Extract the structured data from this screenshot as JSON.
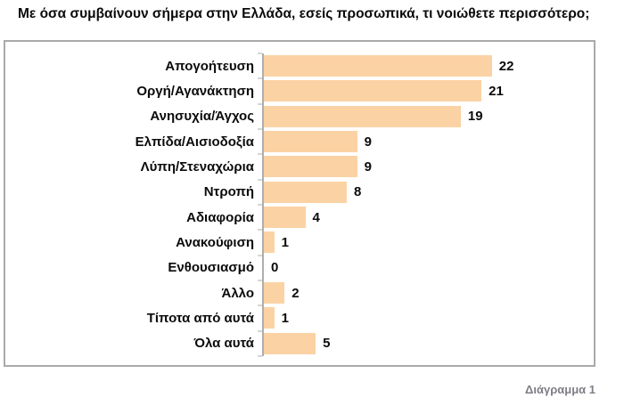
{
  "title": "Με όσα συμβαίνουν σήμερα στην Ελλάδα, εσείς προσωπικά, τι νοιώθετε περισσότερο;",
  "caption": "Διάγραμμα 1",
  "colors": {
    "bar": "#fbd2a4",
    "axis": "#aeaeae",
    "frame_border": "#a9a9a9",
    "text": "#0b0b0c",
    "caption_text": "#7e7e86",
    "background": "#ffffff"
  },
  "chart_data": {
    "type": "bar",
    "orientation": "horizontal",
    "title": "Με όσα συμβαίνουν σήμερα στην Ελλάδα, εσείς προσωπικά, τι νοιώθετε περισσότερο;",
    "categories": [
      "Απογοήτευση",
      "Οργή/Αγανάκτηση",
      "Ανησυχία/Άγχος",
      "Ελπίδα/Αισιοδοξία",
      "Λύπη/Στεναχώρια",
      "Ντροπή",
      "Αδιαφορία",
      "Ανακούφιση",
      "Ενθουσιασμό",
      "Άλλο",
      "Τίποτα από αυτά",
      "Όλα αυτά"
    ],
    "values": [
      22,
      21,
      19,
      9,
      9,
      8,
      4,
      1,
      0,
      2,
      1,
      5
    ],
    "xlabel": "",
    "ylabel": "",
    "xlim": [
      0,
      32
    ],
    "grid": false,
    "legend": false,
    "value_labels_shown": true,
    "bar_color": "#fbd2a4"
  }
}
